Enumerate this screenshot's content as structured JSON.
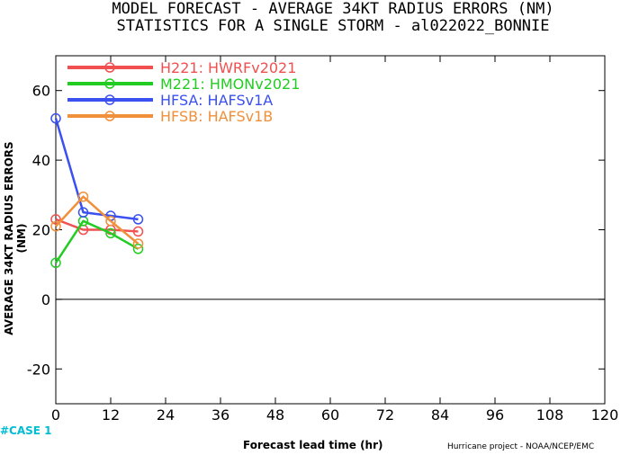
{
  "chart_data": {
    "type": "line",
    "title": "MODEL FORECAST - AVERAGE 34KT RADIUS ERRORS (NM)",
    "subtitle": "STATISTICS FOR A SINGLE STORM - al022022_BONNIE",
    "xlabel": "Forecast lead time (hr)",
    "ylabel": "AVERAGE 34KT RADIUS ERRORS (NM)",
    "xlim": [
      0,
      120
    ],
    "ylim": [
      -30,
      70
    ],
    "xticks": [
      0,
      12,
      24,
      36,
      48,
      60,
      72,
      84,
      96,
      108,
      120
    ],
    "yticks": [
      -20,
      0,
      20,
      40,
      60
    ],
    "legend_position": "top-left",
    "grid": false,
    "x": [
      0,
      6,
      12,
      18
    ],
    "series": [
      {
        "name": "H221:  HWRFv2021",
        "color": "#f05050",
        "values": [
          23,
          20,
          20,
          19.5
        ]
      },
      {
        "name": "M221:  HMONv2021",
        "color": "#22cc22",
        "values": [
          10.5,
          22.5,
          19,
          14.5
        ]
      },
      {
        "name": "HFSA:  HAFSv1A",
        "color": "#3a50f0",
        "values": [
          52,
          25,
          24,
          23
        ]
      },
      {
        "name": "HFSB:  HAFSv1B",
        "color": "#f0903a",
        "values": [
          21,
          29.5,
          22.5,
          16
        ]
      }
    ]
  },
  "case_label": "#CASE  1",
  "credit": "Hurricane project - NOAA/NCEP/EMC"
}
